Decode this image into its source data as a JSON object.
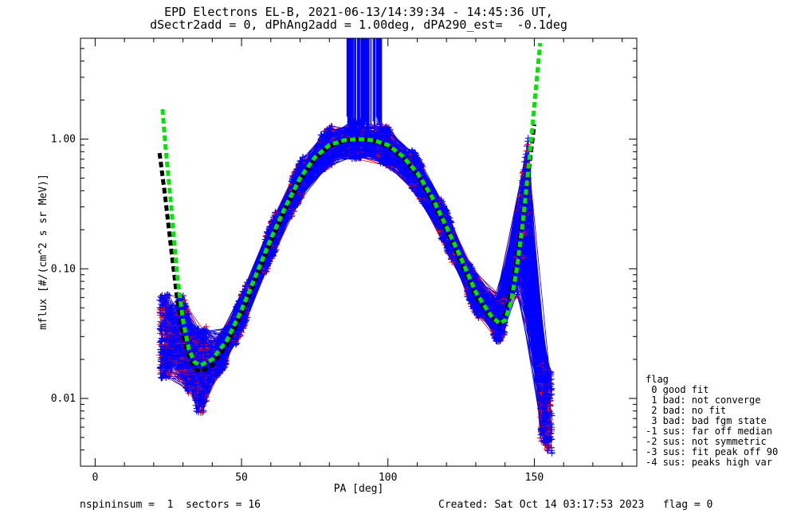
{
  "chart_data": {
    "type": "line",
    "title": "EPD Electrons EL-B, 2021-06-13/14:39:34 - 14:45:36 UT,",
    "subtitle": "dSectr2add = 0, dPhAng2add = 1.00deg, dPA290_est=  -0.1deg",
    "xlabel": "PA [deg]",
    "ylabel": "mflux [#/(cm^2 s sr MeV)]",
    "xlim": [
      -5,
      185
    ],
    "ylim": [
      0.003,
      6
    ],
    "yscale": "log",
    "x_ticks": [
      "0",
      "50",
      "100",
      "150"
    ],
    "y_ticks": [
      "0.01",
      "0.10",
      "1.00"
    ],
    "series": [
      {
        "color": "#000000",
        "style": "dashed",
        "x": [
          22,
          24,
          26,
          28,
          30,
          32,
          34,
          36,
          40,
          45,
          50,
          55,
          60,
          65,
          70,
          75,
          80,
          85,
          90,
          95,
          100,
          105,
          110,
          115,
          120,
          125,
          130,
          135,
          138,
          140,
          142,
          144,
          146,
          148,
          150
        ],
        "y": [
          0.78,
          0.35,
          0.14,
          0.06,
          0.03,
          0.021,
          0.017,
          0.016,
          0.018,
          0.026,
          0.045,
          0.085,
          0.16,
          0.29,
          0.48,
          0.7,
          0.88,
          0.97,
          1.0,
          0.97,
          0.88,
          0.72,
          0.53,
          0.34,
          0.2,
          0.11,
          0.062,
          0.042,
          0.038,
          0.045,
          0.065,
          0.12,
          0.25,
          0.55,
          1.3
        ]
      },
      {
        "color": "#00e600",
        "style": "dashed",
        "x": [
          23,
          24,
          26,
          28,
          30,
          32,
          34,
          36,
          40,
          45,
          50,
          55,
          60,
          65,
          70,
          75,
          80,
          85,
          90,
          95,
          100,
          105,
          110,
          115,
          120,
          125,
          130,
          135,
          138,
          140,
          142,
          144,
          146,
          148,
          150,
          152
        ],
        "y": [
          1.7,
          0.9,
          0.3,
          0.09,
          0.04,
          0.024,
          0.019,
          0.018,
          0.02,
          0.028,
          0.048,
          0.09,
          0.17,
          0.3,
          0.5,
          0.72,
          0.9,
          0.98,
          1.0,
          0.98,
          0.9,
          0.74,
          0.55,
          0.36,
          0.21,
          0.12,
          0.066,
          0.044,
          0.038,
          0.04,
          0.055,
          0.1,
          0.22,
          0.6,
          1.8,
          5.5
        ]
      }
    ],
    "legend": {
      "title": "flag",
      "entries": [
        " 0 good fit",
        " 1 bad: not converge",
        " 2 bad: no fit",
        " 3 bad: bad fgm state",
        "-1 sus: far off median",
        "-2 sus: not symmetric",
        "-3 sus: fit peak off 90",
        "-4 sus: peaks high var"
      ]
    },
    "footer_left": "nspininsum =  1  sectors = 16",
    "footer_right": "Created: Sat Oct 14 03:17:53 2023   flag = 0"
  },
  "colors": {
    "data_a": "#ff0000",
    "data_b": "#0000ff",
    "fit_a": "#000000",
    "fit_b": "#00e600"
  }
}
